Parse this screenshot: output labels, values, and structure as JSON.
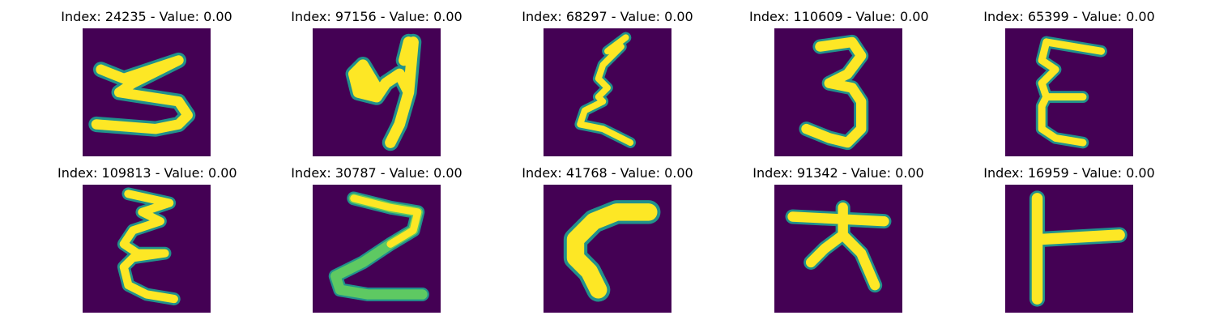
{
  "colors": {
    "background": "#440154",
    "edge": "#21918c",
    "mid": "#5ec962",
    "core": "#fde725"
  },
  "panels": [
    {
      "title": "Index: 24235 - Value: 0.00"
    },
    {
      "title": "Index: 97156 - Value: 0.00"
    },
    {
      "title": "Index: 68297 - Value: 0.00"
    },
    {
      "title": "Index: 110609 - Value: 0.00"
    },
    {
      "title": "Index: 65399 - Value: 0.00"
    },
    {
      "title": "Index: 109813 - Value: 0.00"
    },
    {
      "title": "Index: 30787 - Value: 0.00"
    },
    {
      "title": "Index: 41768 - Value: 0.00"
    },
    {
      "title": "Index: 91342 - Value: 0.00"
    },
    {
      "title": "Index: 16959 - Value: 0.00"
    }
  ]
}
